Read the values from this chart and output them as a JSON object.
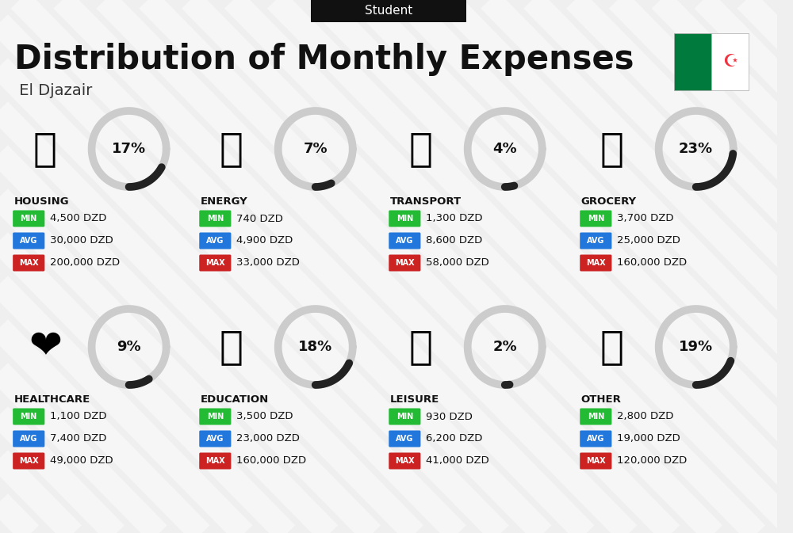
{
  "title": "Distribution of Monthly Expenses",
  "subtitle": " El Djazair",
  "tab_label": "Student",
  "bg_color": "#efefef",
  "categories": [
    {
      "name": "HOUSING",
      "pct": 17,
      "icon": "🏙",
      "emoji": "🏗",
      "min": "4,500 DZD",
      "avg": "30,000 DZD",
      "max": "200,000 DZD",
      "row": 0,
      "col": 0
    },
    {
      "name": "ENERGY",
      "pct": 7,
      "icon": "⚡",
      "emoji": "🔌",
      "min": "740 DZD",
      "avg": "4,900 DZD",
      "max": "33,000 DZD",
      "row": 0,
      "col": 1
    },
    {
      "name": "TRANSPORT",
      "pct": 4,
      "icon": "🚌",
      "emoji": "🚌",
      "min": "1,300 DZD",
      "avg": "8,600 DZD",
      "max": "58,000 DZD",
      "row": 0,
      "col": 2
    },
    {
      "name": "GROCERY",
      "pct": 23,
      "icon": "🛒",
      "emoji": "🛒",
      "min": "3,700 DZD",
      "avg": "25,000 DZD",
      "max": "160,000 DZD",
      "row": 0,
      "col": 3
    },
    {
      "name": "HEALTHCARE",
      "pct": 9,
      "icon": "❤",
      "emoji": "💗",
      "min": "1,100 DZD",
      "avg": "7,400 DZD",
      "max": "49,000 DZD",
      "row": 1,
      "col": 0
    },
    {
      "name": "EDUCATION",
      "pct": 18,
      "icon": "🎓",
      "emoji": "📚",
      "min": "3,500 DZD",
      "avg": "23,000 DZD",
      "max": "160,000 DZD",
      "row": 1,
      "col": 1
    },
    {
      "name": "LEISURE",
      "pct": 2,
      "icon": "🛍",
      "emoji": "🛍",
      "min": "930 DZD",
      "avg": "6,200 DZD",
      "max": "41,000 DZD",
      "row": 1,
      "col": 2
    },
    {
      "name": "OTHER",
      "pct": 19,
      "icon": "👜",
      "emoji": "👜",
      "min": "2,800 DZD",
      "avg": "19,000 DZD",
      "max": "120,000 DZD",
      "row": 1,
      "col": 3
    }
  ],
  "min_color": "#22bb33",
  "avg_color": "#2277dd",
  "max_color": "#cc2222",
  "arc_dark": "#222222",
  "arc_light": "#cccccc"
}
